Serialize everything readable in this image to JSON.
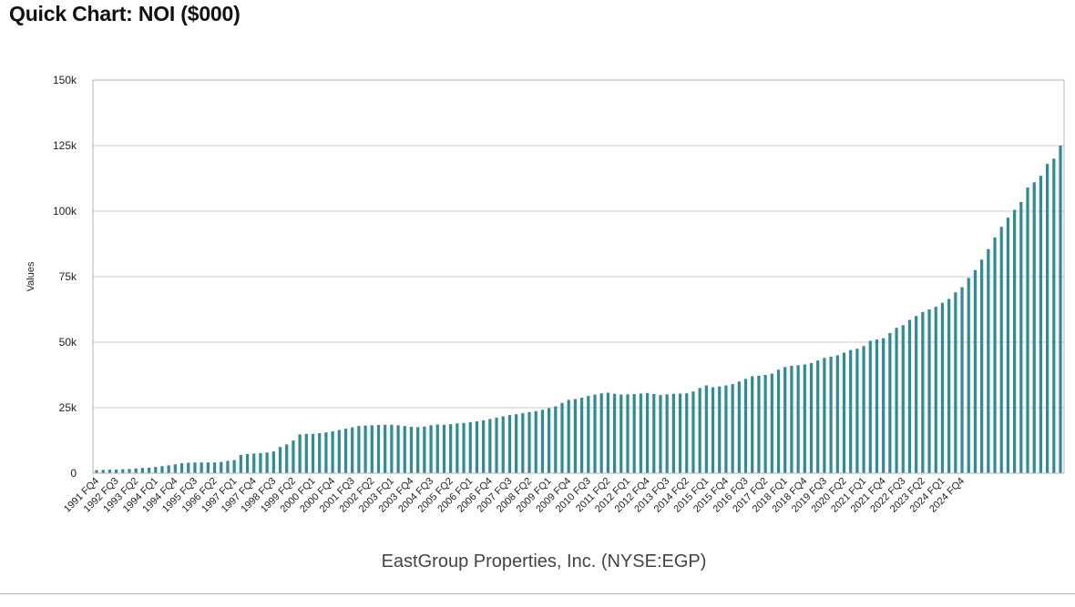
{
  "page": {
    "title": "Quick Chart: NOI ($000)"
  },
  "chart_data": {
    "type": "bar",
    "ylabel": "Values",
    "caption": "EastGroup Properties, Inc. (NYSE:EGP)",
    "ylim": [
      0,
      150000
    ],
    "yticks": [
      0,
      25000,
      50000,
      75000,
      100000,
      125000,
      150000
    ],
    "ytick_labels": [
      "0",
      "25k",
      "50k",
      "75k",
      "100k",
      "125k",
      "150k"
    ],
    "grid": true,
    "bar_color": "#2e8b9a",
    "x_tick_labels": [
      "1991 FQ4",
      "1992 FQ3",
      "1993 FQ2",
      "1994 FQ1",
      "1994 FQ4",
      "1995 FQ3",
      "1996 FQ2",
      "1997 FQ1",
      "1997 FQ4",
      "1998 FQ3",
      "1999 FQ2",
      "2000 FQ1",
      "2000 FQ4",
      "2001 FQ3",
      "2002 FQ2",
      "2003 FQ1",
      "2003 FQ4",
      "2004 FQ3",
      "2005 FQ2",
      "2006 FQ1",
      "2006 FQ4",
      "2007 FQ3",
      "2008 FQ2",
      "2009 FQ1",
      "2009 FQ4",
      "2010 FQ3",
      "2011 FQ2",
      "2012 FQ1",
      "2012 FQ4",
      "2013 FQ3",
      "2014 FQ2",
      "2015 FQ1",
      "2015 FQ4",
      "2016 FQ3",
      "2017 FQ2",
      "2018 FQ1",
      "2018 FQ4",
      "2019 FQ3",
      "2020 FQ2",
      "2021 FQ1",
      "2021 FQ4",
      "2022 FQ3",
      "2023 FQ2",
      "2024 FQ1",
      "2024 FQ4"
    ],
    "values": [
      1200,
      1300,
      1350,
      1400,
      1500,
      1600,
      1800,
      2000,
      2100,
      2400,
      2700,
      3000,
      3400,
      3800,
      4000,
      4100,
      4100,
      4100,
      4100,
      4300,
      4700,
      5000,
      7000,
      7300,
      7500,
      7700,
      7900,
      8300,
      10000,
      11000,
      12500,
      14800,
      15000,
      15000,
      15300,
      15600,
      16000,
      16500,
      17000,
      17500,
      18000,
      18200,
      18300,
      18400,
      18500,
      18500,
      18300,
      18000,
      17700,
      17600,
      17800,
      18300,
      18600,
      18500,
      18700,
      19000,
      19200,
      19500,
      19800,
      20200,
      20700,
      21200,
      21700,
      22200,
      22500,
      22900,
      23300,
      23700,
      24200,
      24800,
      25500,
      26800,
      28000,
      28300,
      28800,
      29500,
      30000,
      30500,
      30700,
      30300,
      30000,
      30100,
      30200,
      30400,
      30600,
      30200,
      29800,
      30100,
      30300,
      30400,
      30500,
      31200,
      32500,
      33500,
      32800,
      33100,
      33500,
      34000,
      35000,
      36000,
      37000,
      37200,
      37500,
      38000,
      39500,
      40500,
      41000,
      41200,
      41500,
      42000,
      43000,
      44000,
      44500,
      45000,
      46000,
      47000,
      47500,
      48500,
      50500,
      51000,
      51500,
      53500,
      55500,
      56500,
      58500,
      60000,
      61500,
      62500,
      63500,
      65000,
      66500,
      69000,
      71000,
      74500,
      77500,
      81500,
      85500,
      90000,
      94000,
      97500,
      100500,
      103500,
      109000,
      111000,
      113500,
      118000,
      120000,
      125000
    ]
  }
}
